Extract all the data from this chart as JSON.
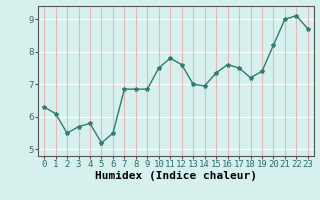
{
  "x": [
    0,
    1,
    2,
    3,
    4,
    5,
    6,
    7,
    8,
    9,
    10,
    11,
    12,
    13,
    14,
    15,
    16,
    17,
    18,
    19,
    20,
    21,
    22,
    23
  ],
  "y": [
    6.3,
    6.1,
    5.5,
    5.7,
    5.8,
    5.2,
    5.5,
    6.85,
    6.85,
    6.85,
    7.5,
    7.8,
    7.6,
    7.0,
    6.95,
    7.35,
    7.6,
    7.5,
    7.2,
    7.4,
    8.2,
    9.0,
    9.1,
    8.7
  ],
  "line_color": "#2e7d6e",
  "marker": "*",
  "marker_size": 3,
  "bg_color": "#d6f0ee",
  "grid_h_color": "#ffffff",
  "grid_v_color": "#e8b8b8",
  "xlabel": "Humidex (Indice chaleur)",
  "xlabel_fontsize": 8,
  "xlim": [
    -0.5,
    23.5
  ],
  "ylim": [
    4.8,
    9.4
  ],
  "yticks": [
    5,
    6,
    7,
    8,
    9
  ],
  "xticks": [
    0,
    1,
    2,
    3,
    4,
    5,
    6,
    7,
    8,
    9,
    10,
    11,
    12,
    13,
    14,
    15,
    16,
    17,
    18,
    19,
    20,
    21,
    22,
    23
  ],
  "tick_fontsize": 6.5,
  "line_width": 1.0,
  "spine_color": "#555555"
}
